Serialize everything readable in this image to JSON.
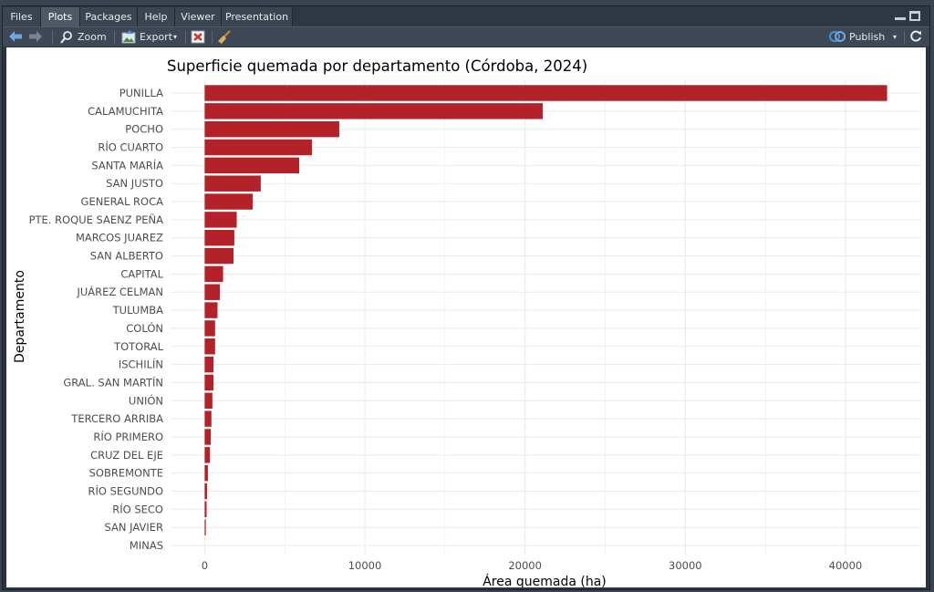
{
  "tabs": [
    {
      "label": "Files"
    },
    {
      "label": "Plots"
    },
    {
      "label": "Packages"
    },
    {
      "label": "Help"
    },
    {
      "label": "Viewer"
    },
    {
      "label": "Presentation"
    }
  ],
  "active_tab": "Plots",
  "toolbar": {
    "zoom_label": "Zoom",
    "export_label": "Export",
    "publish_label": "Publish"
  },
  "colors": {
    "bar": "#b22228",
    "grid": "#ebebeb",
    "accent": "#4a90d9"
  },
  "chart_data": {
    "type": "bar",
    "orientation": "horizontal",
    "title": "Superficie quemada por departamento (Córdoba, 2024)",
    "xlabel": "Área quemada (ha)",
    "ylabel": "Departamento",
    "categories": [
      "PUNILLA",
      "CALAMUCHITA",
      "POCHO",
      "RÍO CUARTO",
      "SANTA MARÍA",
      "SAN JUSTO",
      "GENERAL ROCA",
      "PTE. ROQUE SAENZ PEÑA",
      "MARCOS JUAREZ",
      "SAN ALBERTO",
      "CAPITAL",
      "JUÁREZ CELMAN",
      "TULUMBA",
      "COLÓN",
      "TOTORAL",
      "ISCHILÍN",
      "GRAL. SAN MARTÍN",
      "UNIÓN",
      "TERCERO ARRIBA",
      "RÍO PRIMERO",
      "CRUZ DEL EJE",
      "SOBREMONTE",
      "RÍO SEGUNDO",
      "RÍO SECO",
      "SAN JAVIER",
      "MINAS"
    ],
    "values": [
      42600,
      21100,
      8400,
      6700,
      5900,
      3500,
      3000,
      2000,
      1850,
      1800,
      1150,
      950,
      800,
      650,
      650,
      550,
      550,
      480,
      420,
      380,
      330,
      200,
      150,
      120,
      70,
      0
    ],
    "xticks": [
      0,
      10000,
      20000,
      30000,
      40000
    ],
    "xtick_labels": [
      "0",
      "10000",
      "20000",
      "30000",
      "40000"
    ],
    "xlim": [
      -2130,
      44730
    ],
    "grid": true
  }
}
